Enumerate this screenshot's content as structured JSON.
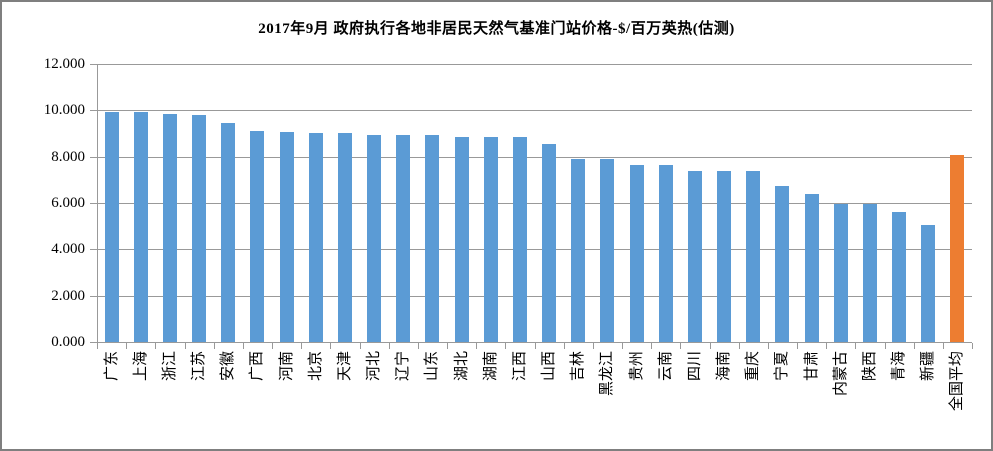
{
  "title": "2017年9月 政府执行各地非居民天然气基准门站价格-$/百万英热(估测)",
  "colors": {
    "bar_default": "#5B9BD5",
    "bar_highlight": "#ED7D31",
    "gridline": "#999999",
    "axis": "#999999",
    "frame_border": "#7F7F7F",
    "text": "#000000",
    "background": "#FFFFFF"
  },
  "chart_data": {
    "type": "bar",
    "title": "2017年9月 政府执行各地非居民天然气基准门站价格-$/百万英热(估测)",
    "categories": [
      "广东",
      "上海",
      "浙江",
      "江苏",
      "安徽",
      "广西",
      "河南",
      "北京",
      "天津",
      "河北",
      "辽宁",
      "山东",
      "湖北",
      "湖南",
      "江西",
      "山西",
      "吉林",
      "黑龙江",
      "贵州",
      "云南",
      "四川",
      "海南",
      "重庆",
      "宁夏",
      "甘肃",
      "内蒙古",
      "陕西",
      "青海",
      "新疆",
      "全国平均"
    ],
    "values": [
      9.92,
      9.92,
      9.86,
      9.8,
      9.46,
      9.09,
      9.06,
      9.01,
      9.01,
      8.94,
      8.93,
      8.92,
      8.85,
      8.85,
      8.84,
      8.53,
      7.88,
      7.88,
      7.63,
      7.62,
      7.37,
      7.36,
      7.36,
      6.73,
      6.39,
      5.97,
      5.95,
      5.62,
      5.05,
      8.07
    ],
    "bar_colors": [
      "#5B9BD5",
      "#5B9BD5",
      "#5B9BD5",
      "#5B9BD5",
      "#5B9BD5",
      "#5B9BD5",
      "#5B9BD5",
      "#5B9BD5",
      "#5B9BD5",
      "#5B9BD5",
      "#5B9BD5",
      "#5B9BD5",
      "#5B9BD5",
      "#5B9BD5",
      "#5B9BD5",
      "#5B9BD5",
      "#5B9BD5",
      "#5B9BD5",
      "#5B9BD5",
      "#5B9BD5",
      "#5B9BD5",
      "#5B9BD5",
      "#5B9BD5",
      "#5B9BD5",
      "#5B9BD5",
      "#5B9BD5",
      "#5B9BD5",
      "#5B9BD5",
      "#5B9BD5",
      "#ED7D31"
    ],
    "highlighted_category": "全国平均",
    "xlabel": "",
    "ylabel": "",
    "ylim": [
      0,
      12
    ],
    "ytick_interval": 2,
    "ytick_labels_top_to_bottom": [
      "12.000",
      "10.000",
      "8.000",
      "6.000",
      "4.000",
      "2.000",
      "0.000"
    ],
    "grid": true,
    "legend": false,
    "x_label_rotation_deg": -90
  }
}
